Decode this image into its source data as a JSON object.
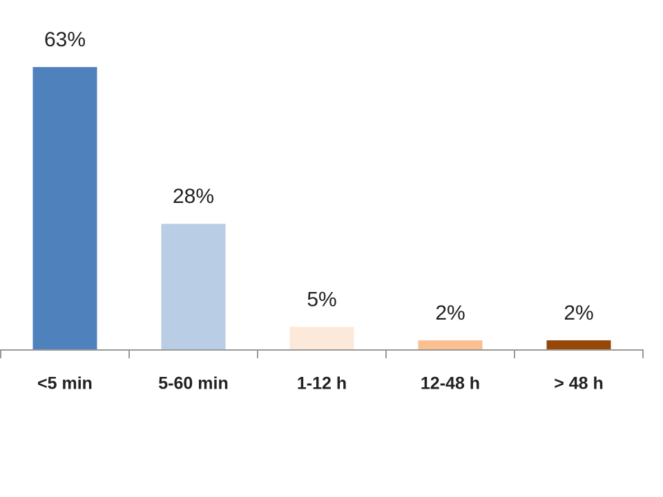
{
  "chart_data": {
    "type": "bar",
    "categories": [
      "<5 min",
      "5-60 min",
      "1-12 h",
      "12-48 h",
      "> 48 h"
    ],
    "values": [
      63,
      28,
      5,
      2,
      2
    ],
    "value_labels": [
      "63%",
      "28%",
      "5%",
      "2%",
      "2%"
    ],
    "colors": [
      "#4f81bd",
      "#b9cde5",
      "#fde9d9",
      "#fac090",
      "#974706"
    ]
  }
}
